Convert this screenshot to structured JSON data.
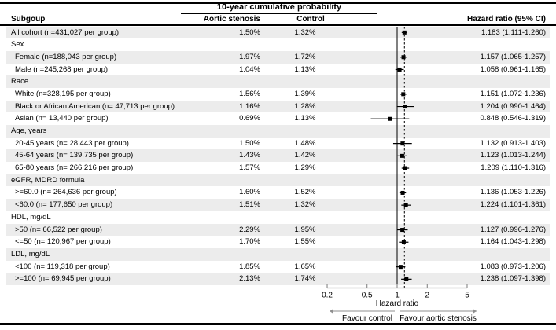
{
  "header": {
    "span_title": "10-year cumulative probability",
    "col_subgroup": "Subgoup",
    "col_as": "Aortic stenosis",
    "col_control": "Control",
    "col_hr": "Hazard ratio (95% CI)"
  },
  "axis": {
    "xlabel": "Hazard ratio",
    "favour_left": "Favour control",
    "favour_right": "Favour aortic stenosis"
  },
  "colors": {
    "stripe": "#ececec",
    "axis_gray": "#8f8f8f",
    "marker": "#000000",
    "rule": "#000000"
  },
  "chart_data": {
    "type": "forest",
    "x_scale": "log",
    "x_ticks": [
      "0.2",
      "0.5",
      "1",
      "2",
      "5"
    ],
    "x_range": [
      0.2,
      5
    ],
    "xlabel": "Hazard ratio",
    "ref_line_at": 1,
    "dashed_line_at": 1.183,
    "rows": [
      {
        "label": "All cohort (n=431,027 per group)",
        "category": false,
        "indent": 0,
        "as": "1.50%",
        "control": "1.32%",
        "hr_text": "1.183 (1.111-1.260)",
        "hr": 1.183,
        "lo": 1.111,
        "hi": 1.26
      },
      {
        "label": "Sex",
        "category": true
      },
      {
        "label": "Female (n=188,043 per group)",
        "category": false,
        "indent": 1,
        "as": "1.97%",
        "control": "1.72%",
        "hr_text": "1.157 (1.065-1.257)",
        "hr": 1.157,
        "lo": 1.065,
        "hi": 1.257
      },
      {
        "label": "Male (n=245,268 per group)",
        "category": false,
        "indent": 1,
        "as": "1.04%",
        "control": "1.13%",
        "hr_text": "1.058 (0.961-1.165)",
        "hr": 1.058,
        "lo": 0.961,
        "hi": 1.165
      },
      {
        "label": "Race",
        "category": true
      },
      {
        "label": "White (n=328,195 per group)",
        "category": false,
        "indent": 1,
        "as": "1.56%",
        "control": "1.39%",
        "hr_text": "1.151 (1.072-1.236)",
        "hr": 1.151,
        "lo": 1.072,
        "hi": 1.236
      },
      {
        "label": "Black or African American (n= 47,713 per group)",
        "category": false,
        "indent": 1,
        "as": "1.16%",
        "control": "1.28%",
        "hr_text": "1.204 (0.990-1.464)",
        "hr": 1.204,
        "lo": 0.99,
        "hi": 1.464
      },
      {
        "label": "Asian (n= 13,440 per group)",
        "category": false,
        "indent": 1,
        "as": "0.69%",
        "control": "1.13%",
        "hr_text": "0.848 (0.546-1.319)",
        "hr": 0.848,
        "lo": 0.546,
        "hi": 1.319
      },
      {
        "label": "Age, years",
        "category": true
      },
      {
        "label": "20-45 years (n= 28,443 per group)",
        "category": false,
        "indent": 1,
        "as": "1.50%",
        "control": "1.48%",
        "hr_text": "1.132 (0.913-1.403)",
        "hr": 1.132,
        "lo": 0.913,
        "hi": 1.403
      },
      {
        "label": "45-64 years (n= 139,735 per group)",
        "category": false,
        "indent": 1,
        "as": "1.43%",
        "control": "1.42%",
        "hr_text": "1.123 (1.013-1.244)",
        "hr": 1.123,
        "lo": 1.013,
        "hi": 1.244
      },
      {
        "label": "65-80 years (n= 266,216 per group)",
        "category": false,
        "indent": 1,
        "as": "1.57%",
        "control": "1.29%",
        "hr_text": "1.209 (1.110-1.316)",
        "hr": 1.209,
        "lo": 1.11,
        "hi": 1.316
      },
      {
        "label": "eGFR, MDRD formula",
        "category": true
      },
      {
        "label": ">=60.0 (n= 264,636 per group)",
        "category": false,
        "indent": 1,
        "as": "1.60%",
        "control": "1.52%",
        "hr_text": "1.136 (1.053-1.226)",
        "hr": 1.136,
        "lo": 1.053,
        "hi": 1.226
      },
      {
        "label": "<60.0 (n= 177,650 per group)",
        "category": false,
        "indent": 1,
        "as": "1.51%",
        "control": "1.32%",
        "hr_text": "1.224 (1.101-1.361)",
        "hr": 1.224,
        "lo": 1.101,
        "hi": 1.361
      },
      {
        "label": "HDL, mg/dL",
        "category": true
      },
      {
        "label": ">50 (n= 66,522 per group)",
        "category": false,
        "indent": 1,
        "as": "2.29%",
        "control": "1.95%",
        "hr_text": "1.127 (0.996-1.276)",
        "hr": 1.127,
        "lo": 0.996,
        "hi": 1.276
      },
      {
        "label": "<=50 (n= 120,967 per group)",
        "category": false,
        "indent": 1,
        "as": "1.70%",
        "control": "1.55%",
        "hr_text": "1.164 (1.043-1.298)",
        "hr": 1.164,
        "lo": 1.043,
        "hi": 1.298
      },
      {
        "label": "LDL, mg/dL",
        "category": true
      },
      {
        "label": "<100 (n= 119,318 per group)",
        "category": false,
        "indent": 1,
        "as": "1.85%",
        "control": "1.65%",
        "hr_text": "1.083 (0.973-1.206)",
        "hr": 1.083,
        "lo": 0.973,
        "hi": 1.206
      },
      {
        "label": ">=100 (n= 69,945 per group)",
        "category": false,
        "indent": 1,
        "as": "2.13%",
        "control": "1.74%",
        "hr_text": "1.238 (1.097-1.398)",
        "hr": 1.238,
        "lo": 1.097,
        "hi": 1.398
      }
    ]
  }
}
